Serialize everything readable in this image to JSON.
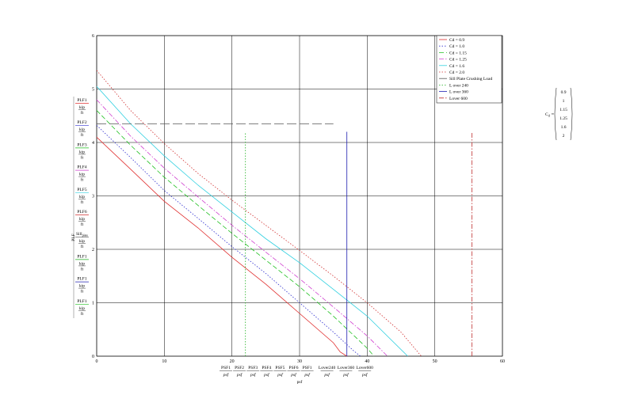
{
  "chart_data": {
    "type": "line",
    "xlim": [
      0,
      60
    ],
    "ylim": [
      0,
      6
    ],
    "x_ticks": [
      "0",
      "10",
      "20",
      "30",
      "40",
      "50",
      "60"
    ],
    "y_ticks": [
      "0",
      "1",
      "2",
      "3",
      "4",
      "5",
      "6"
    ],
    "xlabel": "psf",
    "ylabel": "PLF",
    "grid": true,
    "legend_position": "top-right",
    "series": [
      {
        "name": "Cd = 0.9",
        "color": "#e03030",
        "dash": "solid",
        "x": [
          0,
          5,
          10,
          15,
          20,
          25,
          30,
          35,
          36,
          37
        ],
        "y": [
          4.1,
          3.5,
          2.9,
          2.4,
          1.85,
          1.35,
          0.8,
          0.25,
          0.08,
          0
        ]
      },
      {
        "name": "Cd = 1.0",
        "color": "#3030d0",
        "dash": "dot",
        "x": [
          0,
          5,
          10,
          15,
          20,
          25,
          30,
          35,
          38,
          39
        ],
        "y": [
          4.32,
          3.72,
          3.1,
          2.58,
          2.05,
          1.55,
          1.0,
          0.45,
          0.1,
          0
        ]
      },
      {
        "name": "Cd = 1.15",
        "color": "#20c020",
        "dash": "dash",
        "x": [
          0,
          5,
          10,
          15,
          20,
          25,
          30,
          35,
          40,
          41
        ],
        "y": [
          4.6,
          3.95,
          3.35,
          2.82,
          2.3,
          1.8,
          1.3,
          0.75,
          0.15,
          0
        ]
      },
      {
        "name": "Cd = 1.25",
        "color": "#d040d0",
        "dash": "dashdot",
        "x": [
          0,
          5,
          10,
          15,
          20,
          25,
          30,
          35,
          40,
          43
        ],
        "y": [
          4.8,
          4.12,
          3.52,
          2.98,
          2.45,
          1.95,
          1.45,
          0.92,
          0.38,
          0
        ]
      },
      {
        "name": "Cd = 1.6",
        "color": "#30d0e0",
        "dash": "solid",
        "x": [
          0,
          5,
          10,
          15,
          20,
          25,
          30,
          35,
          40,
          46
        ],
        "y": [
          5.05,
          4.35,
          3.75,
          3.2,
          2.7,
          2.2,
          1.75,
          1.25,
          0.75,
          0
        ]
      },
      {
        "name": "Cd = 2.0",
        "color": "#d03030",
        "dash": "dot",
        "x": [
          0,
          5,
          10,
          15,
          20,
          25,
          30,
          35,
          40,
          45,
          48
        ],
        "y": [
          5.35,
          4.6,
          3.98,
          3.42,
          2.92,
          2.45,
          1.98,
          1.5,
          1.0,
          0.45,
          0
        ]
      },
      {
        "name": "Sill Plate Crushing Load",
        "color": "#555555",
        "dash": "longdash",
        "x": [
          0,
          35
        ],
        "y": [
          4.35,
          4.35
        ]
      },
      {
        "name": "L over 240",
        "color": "#20b020",
        "dash": "dot",
        "x": [
          22,
          22
        ],
        "y": [
          0,
          4.2
        ]
      },
      {
        "name": "L over 360",
        "color": "#2020b0",
        "dash": "solid",
        "x": [
          37,
          37
        ],
        "y": [
          0,
          4.2
        ]
      },
      {
        "name": "Lover 600",
        "color": "#c03030",
        "dash": "dashdot",
        "x": [
          55.5,
          55.5
        ],
        "y": [
          0,
          4.2
        ]
      }
    ],
    "left_labels": [
      {
        "num": "PLF1",
        "den": "kip/ft",
        "color": "#e03030"
      },
      {
        "num": "PLF2",
        "den": "kip/ft",
        "color": "#3030d0"
      },
      {
        "num": "PLF3",
        "den": "kip/ft",
        "color": "#20c020"
      },
      {
        "num": "PLF4",
        "den": "kip/ft",
        "color": "#d040d0"
      },
      {
        "num": "PLF5",
        "den": "kip/ft",
        "color": "#30d0e0"
      },
      {
        "num": "PLF6",
        "den": "kip/ft",
        "color": "#d03030"
      },
      {
        "num": "Sill",
        "sub": "plate",
        "den": "kip/ft",
        "color": "#555555"
      },
      {
        "num": "PLF1",
        "den": "kip/ft",
        "color": "#20b020"
      },
      {
        "num": "PLF1",
        "den": "kip/ft",
        "color": "#2020b0"
      },
      {
        "num": "PLF1",
        "den": "kip/ft",
        "color": "#20c020"
      }
    ],
    "bottom_labels": [
      {
        "num": "PSF1",
        "den": "psf"
      },
      {
        "num": "PSF2",
        "den": "psf"
      },
      {
        "num": "PSF3",
        "den": "psf"
      },
      {
        "num": "PSF4",
        "den": "psf"
      },
      {
        "num": "PSF5",
        "den": "psf"
      },
      {
        "num": "PSF6",
        "den": "psf"
      },
      {
        "num": "PSF1",
        "den": "psf"
      },
      {
        "num": "Lover240",
        "den": "psf"
      },
      {
        "num": "Lover360",
        "den": "psf"
      },
      {
        "num": "Lover600",
        "den": "psf"
      }
    ],
    "cd_vector": {
      "symbol": "C",
      "subscript": "d",
      "values": [
        "0.9",
        "1",
        "1.15",
        "1.25",
        "1.6",
        "2"
      ]
    }
  }
}
